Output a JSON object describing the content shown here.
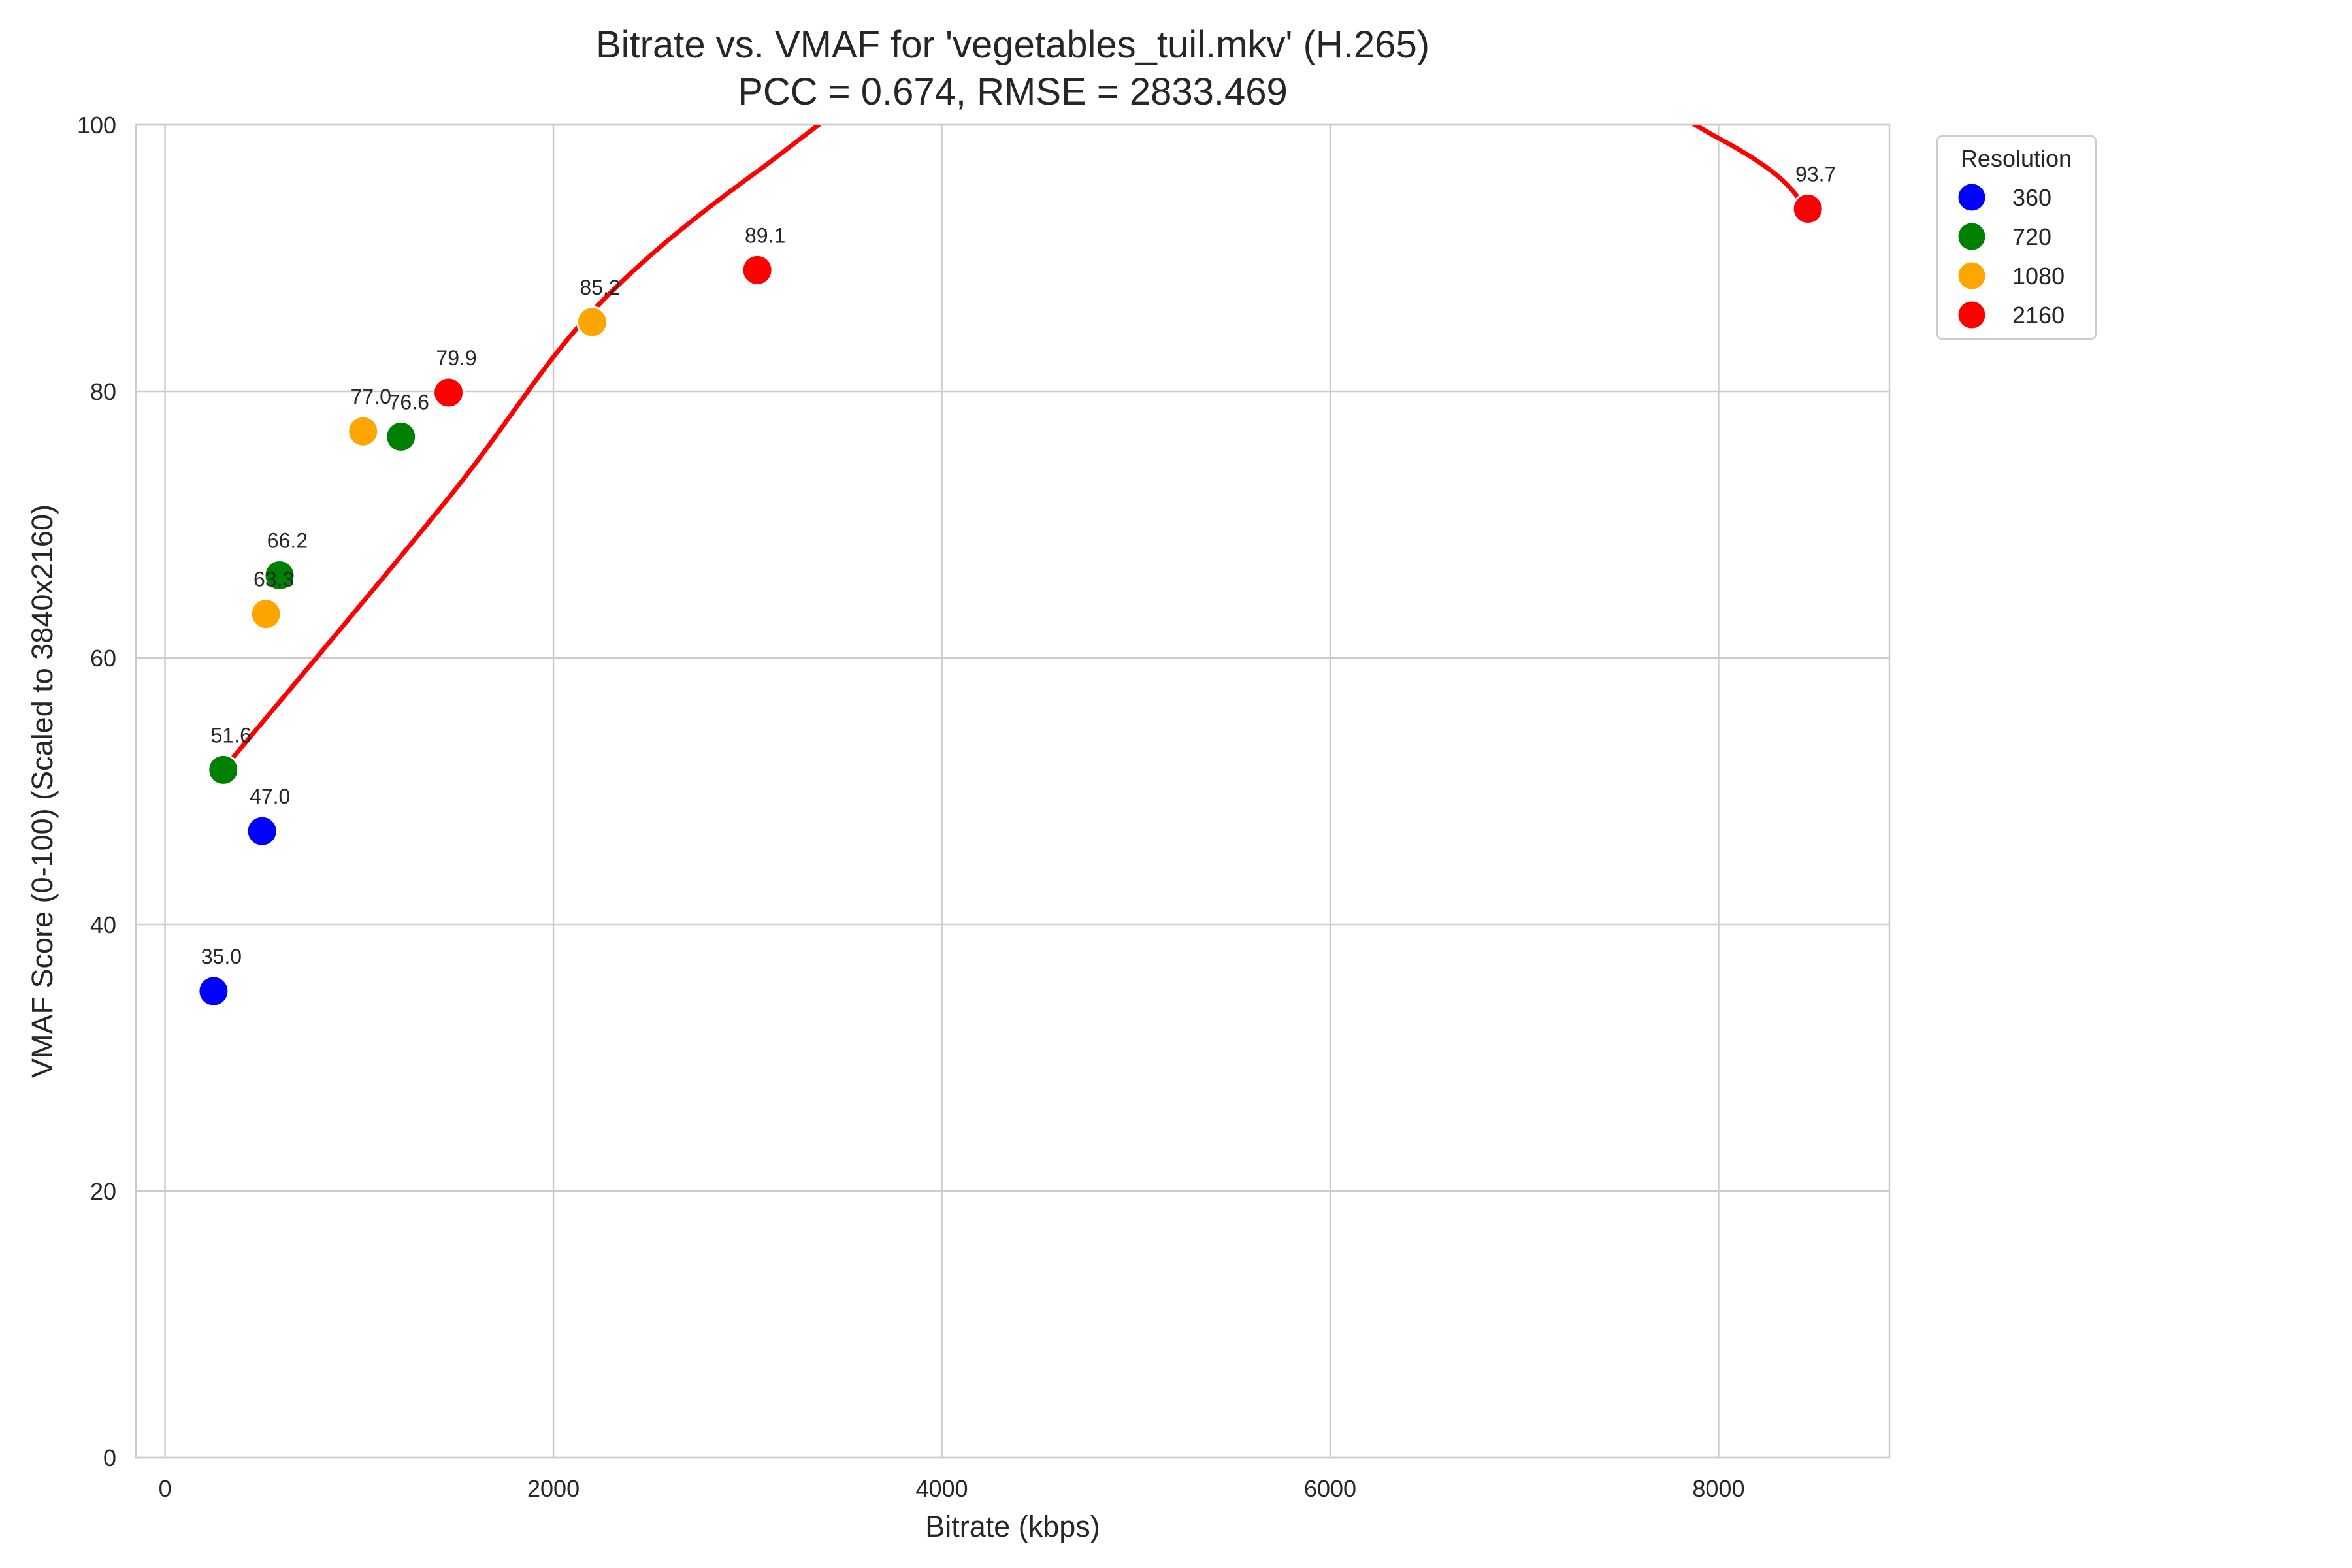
{
  "chart_data": {
    "type": "scatter",
    "title_line1": "Bitrate vs. VMAF for 'vegetables_tuil.mkv' (H.265)",
    "title_line2": "PCC = 0.674, RMSE = 2833.469",
    "xlabel": "Bitrate (kbps)",
    "ylabel": "VMAF Score (0-100) (Scaled to 3840x2160)",
    "xlim": [
      -150,
      8880
    ],
    "ylim": [
      0,
      100
    ],
    "xticks": [
      0,
      2000,
      4000,
      6000,
      8000
    ],
    "yticks": [
      0,
      20,
      40,
      60,
      80,
      100
    ],
    "grid": true,
    "legend": {
      "title": "Resolution",
      "position": "outside-top-right"
    },
    "series": [
      {
        "name": "360",
        "color": "#0000ff",
        "points": [
          {
            "x": 250,
            "y": 35.0,
            "label": "35.0"
          },
          {
            "x": 500,
            "y": 47.0,
            "label": "47.0"
          }
        ]
      },
      {
        "name": "720",
        "color": "#008000",
        "points": [
          {
            "x": 300,
            "y": 51.6,
            "label": "51.6"
          },
          {
            "x": 590,
            "y": 66.2,
            "label": "66.2"
          },
          {
            "x": 1215,
            "y": 76.6,
            "label": "76.6"
          }
        ]
      },
      {
        "name": "1080",
        "color": "#ffa500",
        "points": [
          {
            "x": 520,
            "y": 63.3,
            "label": "63.3"
          },
          {
            "x": 1020,
            "y": 77.0,
            "label": "77.0"
          },
          {
            "x": 2200,
            "y": 85.2,
            "label": "85.2"
          }
        ]
      },
      {
        "name": "2160",
        "color": "#ff0000",
        "points": [
          {
            "x": 1460,
            "y": 79.9,
            "label": "79.9"
          },
          {
            "x": 3050,
            "y": 89.1,
            "label": "89.1"
          },
          {
            "x": 8460,
            "y": 93.7,
            "label": "93.7"
          }
        ]
      }
    ],
    "fit_curve": {
      "type": "quadratic",
      "color": "#ff0000",
      "x_range": [
        320,
        8460
      ],
      "points": [
        [
          320,
          52.0
        ],
        [
          1460,
          72.0
        ],
        [
          2200,
          86.0
        ],
        [
          3050,
          96.5
        ],
        [
          4000,
          105.0
        ],
        [
          6000,
          113.0
        ],
        [
          8000,
          99.0
        ],
        [
          8460,
          93.7
        ]
      ]
    }
  }
}
